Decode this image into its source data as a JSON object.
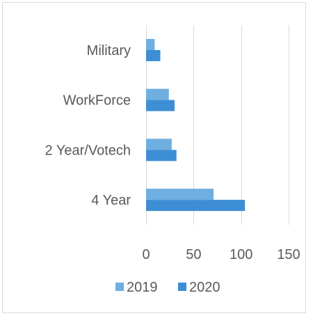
{
  "chart_data": {
    "type": "bar",
    "orientation": "horizontal",
    "categories": [
      "Military",
      "WorkForce",
      "2 Year/Votech",
      "4 Year"
    ],
    "series": [
      {
        "name": "2019",
        "values": [
          9,
          24,
          27,
          71
        ],
        "color": "#6faee0"
      },
      {
        "name": "2020",
        "values": [
          15,
          30,
          32,
          104
        ],
        "color": "#3d8ed4"
      }
    ],
    "xlim": [
      0,
      150
    ],
    "xticks": [
      0,
      50,
      100,
      150
    ],
    "grid": true,
    "legend_position": "bottom"
  }
}
